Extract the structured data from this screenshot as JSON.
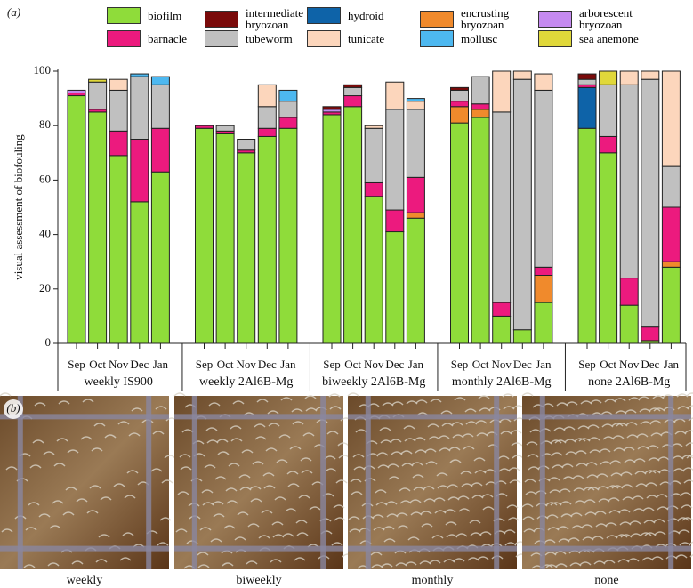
{
  "chart_data": {
    "type": "bar",
    "stacked": true,
    "y_label": "visual assessment of biofouling",
    "ylim": [
      0,
      100
    ],
    "yticks": [
      0,
      20,
      40,
      60,
      80,
      100
    ],
    "categories": [
      "Sep",
      "Oct",
      "Nov",
      "Dec",
      "Jan",
      "Sep",
      "Oct",
      "Nov",
      "Dec",
      "Jan",
      "Sep",
      "Oct",
      "Nov",
      "Dec",
      "Jan",
      "Sep",
      "Oct",
      "Nov",
      "Dec",
      "Jan",
      "Sep",
      "Oct",
      "Nov",
      "Dec",
      "Jan"
    ],
    "groups": [
      "weekly IS900",
      "weekly 2Al6B-Mg",
      "biweekly 2Al6B-Mg",
      "monthly 2Al6B-Mg",
      "none 2Al6B-Mg"
    ],
    "series": [
      {
        "name": "biofilm",
        "color": "#8fdc3a",
        "values": [
          91,
          85,
          69,
          52,
          63,
          79,
          77,
          70,
          76,
          79,
          84,
          87,
          54,
          41,
          46,
          81,
          83,
          10,
          5,
          15,
          79,
          70,
          14,
          1,
          28
        ]
      },
      {
        "name": "encrusting bryozoan",
        "color": "#f08a2c",
        "values": [
          0,
          0,
          0,
          0,
          0,
          0,
          0,
          0,
          0,
          0,
          0,
          0,
          0,
          0,
          2,
          6,
          3,
          0,
          0,
          10,
          0,
          0,
          0,
          0,
          2
        ]
      },
      {
        "name": "hydroid",
        "color": "#0e63a8",
        "values": [
          0,
          0,
          0,
          0,
          0,
          0,
          0,
          0,
          0,
          0,
          0,
          0,
          0,
          0,
          0,
          0,
          0,
          0,
          0,
          0,
          15,
          0,
          0,
          0,
          0
        ]
      },
      {
        "name": "barnacle",
        "color": "#ec1a7e",
        "values": [
          1,
          1,
          9,
          23,
          16,
          1,
          1,
          1,
          3,
          4,
          1,
          4,
          5,
          8,
          13,
          2,
          2,
          5,
          0,
          3,
          1,
          6,
          10,
          5,
          20
        ]
      },
      {
        "name": "tubeworm",
        "color": "#c0c0c0",
        "values": [
          0,
          10,
          15,
          23,
          16,
          0,
          2,
          4,
          8,
          6,
          0,
          3,
          20,
          37,
          25,
          4,
          10,
          70,
          92,
          65,
          2,
          19,
          71,
          91,
          15
        ]
      },
      {
        "name": "arborescent bryozoan",
        "color": "#c58af0",
        "values": [
          1,
          0,
          0,
          0,
          0,
          0,
          0,
          0,
          0,
          0,
          1,
          0,
          0,
          0,
          0,
          0,
          0,
          0,
          0,
          0,
          0,
          0,
          0,
          0,
          0
        ]
      },
      {
        "name": "intermediate bryozoan",
        "color": "#7a0a0a",
        "values": [
          0,
          0,
          0,
          0,
          0,
          0,
          0,
          0,
          0,
          0,
          1,
          1,
          0,
          0,
          0,
          1,
          0,
          0,
          0,
          0,
          2,
          0,
          0,
          0,
          0
        ]
      },
      {
        "name": "tunicate",
        "color": "#fcd6bc",
        "values": [
          0,
          0,
          4,
          0,
          0,
          0,
          0,
          0,
          8,
          0,
          0,
          0,
          1,
          10,
          3,
          0,
          0,
          15,
          3,
          6,
          0,
          0,
          5,
          3,
          35
        ]
      },
      {
        "name": "mollusc",
        "color": "#4db8f0",
        "values": [
          0,
          0,
          0,
          1,
          3,
          0,
          0,
          0,
          0,
          4,
          0,
          0,
          0,
          0,
          1,
          0,
          0,
          0,
          0,
          0,
          0,
          0,
          0,
          0,
          0
        ]
      },
      {
        "name": "sea anemone",
        "color": "#e0d83a",
        "values": [
          0,
          1,
          0,
          0,
          0,
          0,
          0,
          0,
          0,
          0,
          0,
          0,
          0,
          0,
          0,
          0,
          0,
          0,
          0,
          0,
          0,
          5,
          0,
          0,
          0
        ]
      }
    ]
  },
  "panel_a_label": "(a)",
  "panel_b_label": "(b)",
  "photos": [
    {
      "caption": "weekly"
    },
    {
      "caption": "biweekly"
    },
    {
      "caption": "monthly"
    },
    {
      "caption": "none"
    }
  ]
}
